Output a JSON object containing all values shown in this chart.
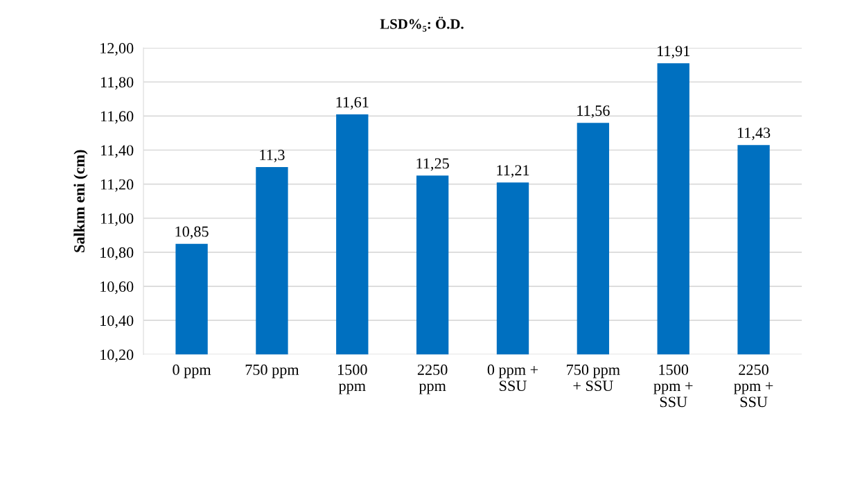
{
  "chart_data": {
    "type": "bar",
    "title": "LSD%₅: Ö.D.",
    "ylabel": "Salkım eni (cm)",
    "categories": [
      "0 ppm",
      "750 ppm",
      "1500\nppm",
      "2250\nppm",
      "0 ppm +\nSSU",
      "750 ppm\n+ SSU",
      "1500\nppm +\nSSU",
      "2250\nppm +\nSSU"
    ],
    "values": [
      10.85,
      11.3,
      11.61,
      11.25,
      11.21,
      11.56,
      11.91,
      11.43
    ],
    "value_labels": [
      "10,85",
      "11,3",
      "11,61",
      "11,25",
      "11,21",
      "11,56",
      "11,91",
      "11,43"
    ],
    "color": "#0070c0",
    "ylim": [
      10.2,
      12.0
    ],
    "yticks": [
      {
        "value": 10.2,
        "label": "10,20"
      },
      {
        "value": 10.4,
        "label": "10,40"
      },
      {
        "value": 10.6,
        "label": "10,60"
      },
      {
        "value": 10.8,
        "label": "10,80"
      },
      {
        "value": 11.0,
        "label": "11,00"
      },
      {
        "value": 11.2,
        "label": "11,20"
      },
      {
        "value": 11.4,
        "label": "11,40"
      },
      {
        "value": 11.6,
        "label": "11,60"
      },
      {
        "value": 11.8,
        "label": "11,80"
      },
      {
        "value": 12.0,
        "label": "12,00"
      }
    ],
    "grid": "y",
    "legend": false
  }
}
